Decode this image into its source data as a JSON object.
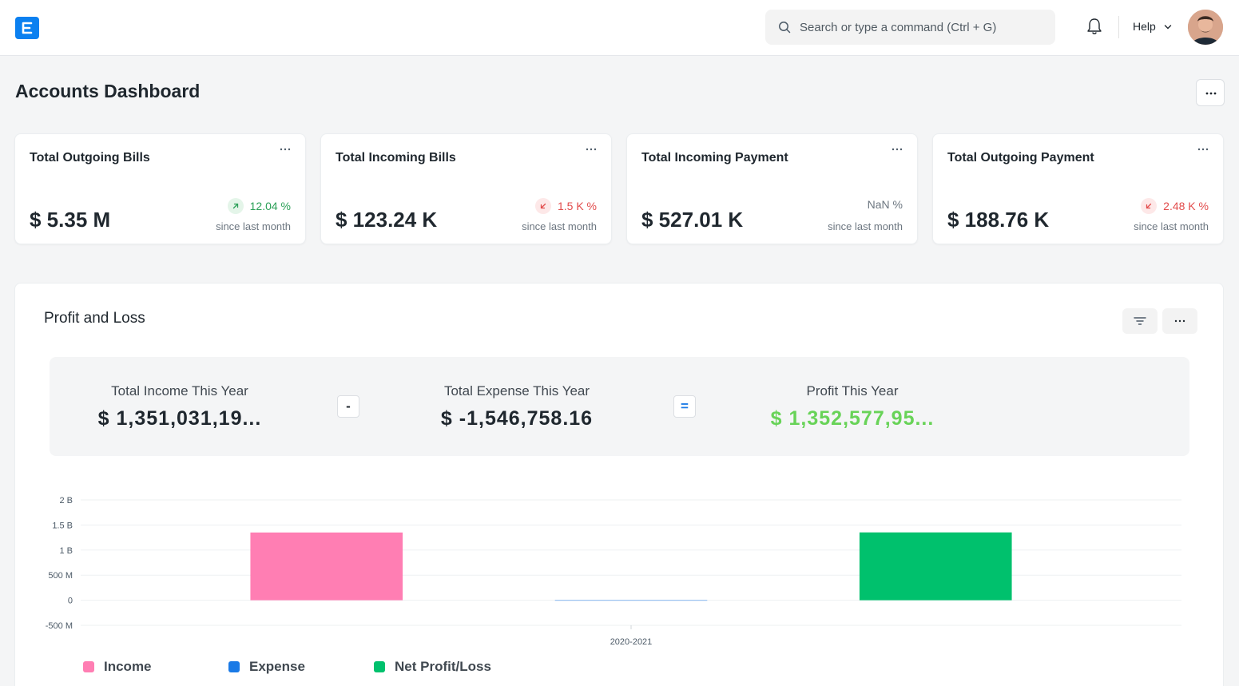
{
  "navbar": {
    "search_placeholder": "Search or type a command (Ctrl + G)",
    "help_label": "Help"
  },
  "page": {
    "title": "Accounts Dashboard"
  },
  "cards": [
    {
      "title": "Total Outgoing Bills",
      "value": "$ 5.35 M",
      "change": "12.04 %",
      "direction": "up",
      "since": "since last month"
    },
    {
      "title": "Total Incoming Bills",
      "value": "$ 123.24 K",
      "change": "1.5 K %",
      "direction": "down",
      "since": "since last month"
    },
    {
      "title": "Total Incoming Payment",
      "value": "$ 527.01 K",
      "change": "NaN %",
      "direction": "neutral",
      "since": "since last month"
    },
    {
      "title": "Total Outgoing Payment",
      "value": "$ 188.76 K",
      "change": "2.48 K %",
      "direction": "down",
      "since": "since last month"
    }
  ],
  "profit_loss": {
    "title": "Profit and Loss",
    "income_label": "Total Income This Year",
    "income_value": "$ 1,351,031,19...",
    "minus_symbol": "-",
    "expense_label": "Total Expense This Year",
    "expense_value": "$ -1,546,758.16",
    "equals_symbol": "=",
    "profit_label": "Profit This Year",
    "profit_value": "$ 1,352,577,95..."
  },
  "colors": {
    "income": "#ff7eb3",
    "expense": "#1a7ae6",
    "net": "#00c16d",
    "profit_text": "#68d358"
  },
  "chart_data": {
    "type": "bar",
    "categories": [
      "2020-2021"
    ],
    "series": [
      {
        "name": "Income",
        "values": [
          1351031190
        ],
        "color": "#ff7eb3"
      },
      {
        "name": "Expense",
        "values": [
          -1546758.16
        ],
        "color": "#1a7ae6"
      },
      {
        "name": "Net Profit/Loss",
        "values": [
          1352577950
        ],
        "color": "#00c16d"
      }
    ],
    "y_ticks": [
      "2 B",
      "1.5 B",
      "1 B",
      "500 M",
      "0",
      "-500 M"
    ],
    "ylim": [
      -500000000,
      2000000000
    ],
    "legend_position": "bottom-left",
    "grid": true
  }
}
